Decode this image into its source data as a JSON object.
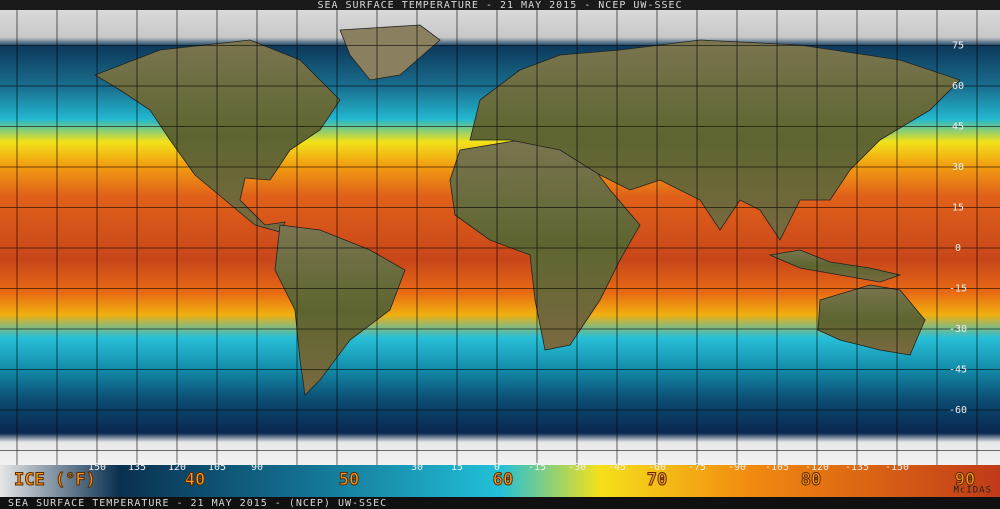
{
  "title": "SEA SURFACE TEMPERATURE - 21 MAY 2015 - NCEP UW-SSEC",
  "latitude_labels": [
    "75",
    "60",
    "45",
    "30",
    "15",
    "0",
    "-15",
    "-30",
    "-45",
    "-60"
  ],
  "longitude_labels": [
    "150",
    "135",
    "120",
    "105",
    "90",
    "30",
    "15",
    "0",
    "-15",
    "-30",
    "-45",
    "-60",
    "-75",
    "-90",
    "-105",
    "-120",
    "-135",
    "-150"
  ],
  "legend": {
    "ice_label": "ICE (°F)",
    "labels": [
      "40",
      "50",
      "60",
      "70",
      "80",
      "90"
    ]
  },
  "footer": "SEA SURFACE TEMPERATURE - 21 MAY 2015 - (NCEP)  UW-SSEC",
  "credit": "McIDAS"
}
